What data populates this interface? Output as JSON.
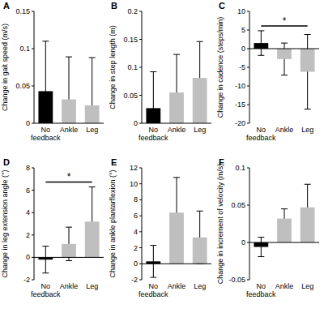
{
  "chart_data": [
    {
      "type": "bar",
      "title": "A",
      "y_label": "Change in gait speed (m/s)",
      "categories": [
        "No feedback",
        "Ankle",
        "Leg"
      ],
      "values": [
        0.043,
        0.032,
        0.024
      ],
      "errors": [
        0.067,
        0.057,
        0.064
      ],
      "colors": [
        "#000000",
        "#bfbfbf",
        "#bfbfbf"
      ],
      "ylim": [
        0,
        0.15
      ],
      "yticks": [
        0,
        0.05,
        0.1,
        0.15
      ],
      "grid": false
    },
    {
      "type": "bar",
      "title": "B",
      "y_label": "Change in step length (m)",
      "categories": [
        "No feedback",
        "Ankle",
        "Leg"
      ],
      "values": [
        0.027,
        0.055,
        0.081
      ],
      "errors": [
        0.065,
        0.068,
        0.065
      ],
      "colors": [
        "#000000",
        "#bfbfbf",
        "#bfbfbf"
      ],
      "ylim": [
        0,
        0.2
      ],
      "yticks": [
        0,
        0.05,
        0.1,
        0.15,
        0.2
      ],
      "grid": false
    },
    {
      "type": "bar",
      "title": "C",
      "y_label": "Change in cadence (steps/min)",
      "categories": [
        "No feedback",
        "Ankle",
        "Leg"
      ],
      "values": [
        1.5,
        -2.8,
        -6.2
      ],
      "errors": [
        3.3,
        4.3,
        10.0
      ],
      "colors": [
        "#000000",
        "#bfbfbf",
        "#bfbfbf"
      ],
      "ylim": [
        -20,
        10
      ],
      "yticks": [
        -20,
        -15,
        -10,
        -5,
        0,
        5,
        10
      ],
      "grid": false,
      "annotation": "*"
    },
    {
      "type": "bar",
      "title": "D",
      "y_label": "Change in leg extension angle (°)",
      "categories": [
        "No feedback",
        "Ankle",
        "Leg"
      ],
      "values": [
        -0.2,
        1.2,
        3.2
      ],
      "errors": [
        1.2,
        1.5,
        3.1
      ],
      "colors": [
        "#000000",
        "#bfbfbf",
        "#bfbfbf"
      ],
      "ylim": [
        -2,
        8
      ],
      "yticks": [
        -2,
        0,
        2,
        4,
        6,
        8
      ],
      "grid": false,
      "annotation": "*"
    },
    {
      "type": "bar",
      "title": "E",
      "y_label": "Change in ankle plantarflexion (°)",
      "categories": [
        "No feedback",
        "Ankle",
        "Leg"
      ],
      "values": [
        0.3,
        6.4,
        3.3
      ],
      "errors": [
        2.0,
        4.4,
        3.3
      ],
      "colors": [
        "#000000",
        "#bfbfbf",
        "#bfbfbf"
      ],
      "ylim": [
        -2,
        12
      ],
      "yticks": [
        -2,
        0,
        2,
        4,
        6,
        8,
        10,
        12
      ],
      "grid": false
    },
    {
      "type": "bar",
      "title": "F",
      "y_label": "Change in increment of velocity (m/s)",
      "categories": [
        "No feedback",
        "Ankle",
        "Leg"
      ],
      "values": [
        -0.006,
        0.032,
        0.047
      ],
      "errors": [
        0.013,
        0.013,
        0.031
      ],
      "colors": [
        "#000000",
        "#bfbfbf",
        "#bfbfbf"
      ],
      "ylim": [
        -0.05,
        0.1
      ],
      "yticks": [
        -0.05,
        0,
        0.05,
        0.1
      ],
      "grid": false
    }
  ]
}
